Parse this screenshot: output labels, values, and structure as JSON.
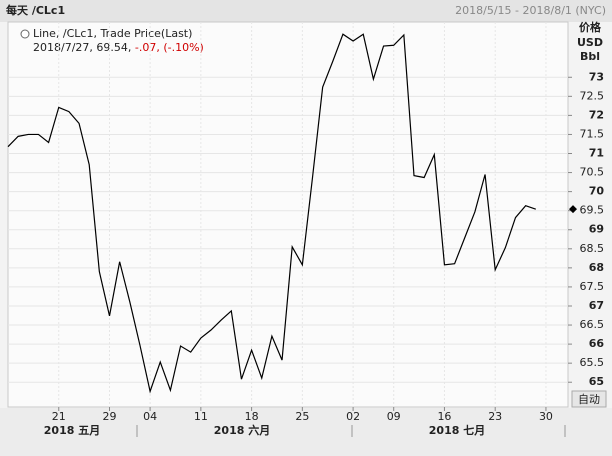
{
  "chart_data": {
    "type": "line",
    "title": "每天 /CLc1",
    "range_label": "2018/5/15 - 2018/8/1 (NYC)",
    "units": [
      "价格",
      "USD",
      "Bbl"
    ],
    "last_quote": [
      "2018/7/27, 69.54,",
      "-.07, (-.10%)"
    ],
    "button": "自动",
    "months": [
      "2018 五月",
      "2018 六月",
      "2018 七月"
    ],
    "categories": [
      null,
      null,
      null,
      null,
      null,
      "21",
      null,
      null,
      null,
      null,
      "29",
      null,
      null,
      null,
      "04",
      null,
      null,
      null,
      null,
      "11",
      null,
      null,
      null,
      null,
      "18",
      null,
      null,
      null,
      null,
      "25",
      null,
      null,
      null,
      null,
      "02",
      null,
      null,
      null,
      "09",
      null,
      null,
      null,
      null,
      "16",
      null,
      null,
      null,
      null,
      "23",
      null,
      null,
      null,
      null,
      "30",
      null,
      null
    ],
    "series": [
      {
        "name": "Line, /CLc1, Trade Price(Last)",
        "color": "#000000",
        "values": [
          71.18,
          71.45,
          71.5,
          71.5,
          71.29,
          72.21,
          72.1,
          71.79,
          70.71,
          67.9,
          66.74,
          68.16,
          67.11,
          65.97,
          64.76,
          65.53,
          64.79,
          65.95,
          65.79,
          66.16,
          66.37,
          66.63,
          66.87,
          65.08,
          65.84,
          65.11,
          66.21,
          65.58,
          68.55,
          68.08,
          70.37,
          72.74,
          73.42,
          74.13,
          73.95,
          74.13,
          72.95,
          73.82,
          73.84,
          74.11,
          70.42,
          70.37,
          70.97,
          68.08,
          68.11,
          68.79,
          69.47,
          70.45,
          67.95,
          68.53,
          69.32,
          69.63,
          69.54,
          null,
          null,
          null
        ]
      }
    ],
    "ylim": [
      64.35,
      74.45
    ],
    "yticks": [
      65,
      65.5,
      66,
      66.5,
      67,
      67.5,
      68,
      68.5,
      69,
      69.5,
      70,
      70.5,
      71,
      71.5,
      72,
      72.5,
      73
    ],
    "grid": true
  }
}
